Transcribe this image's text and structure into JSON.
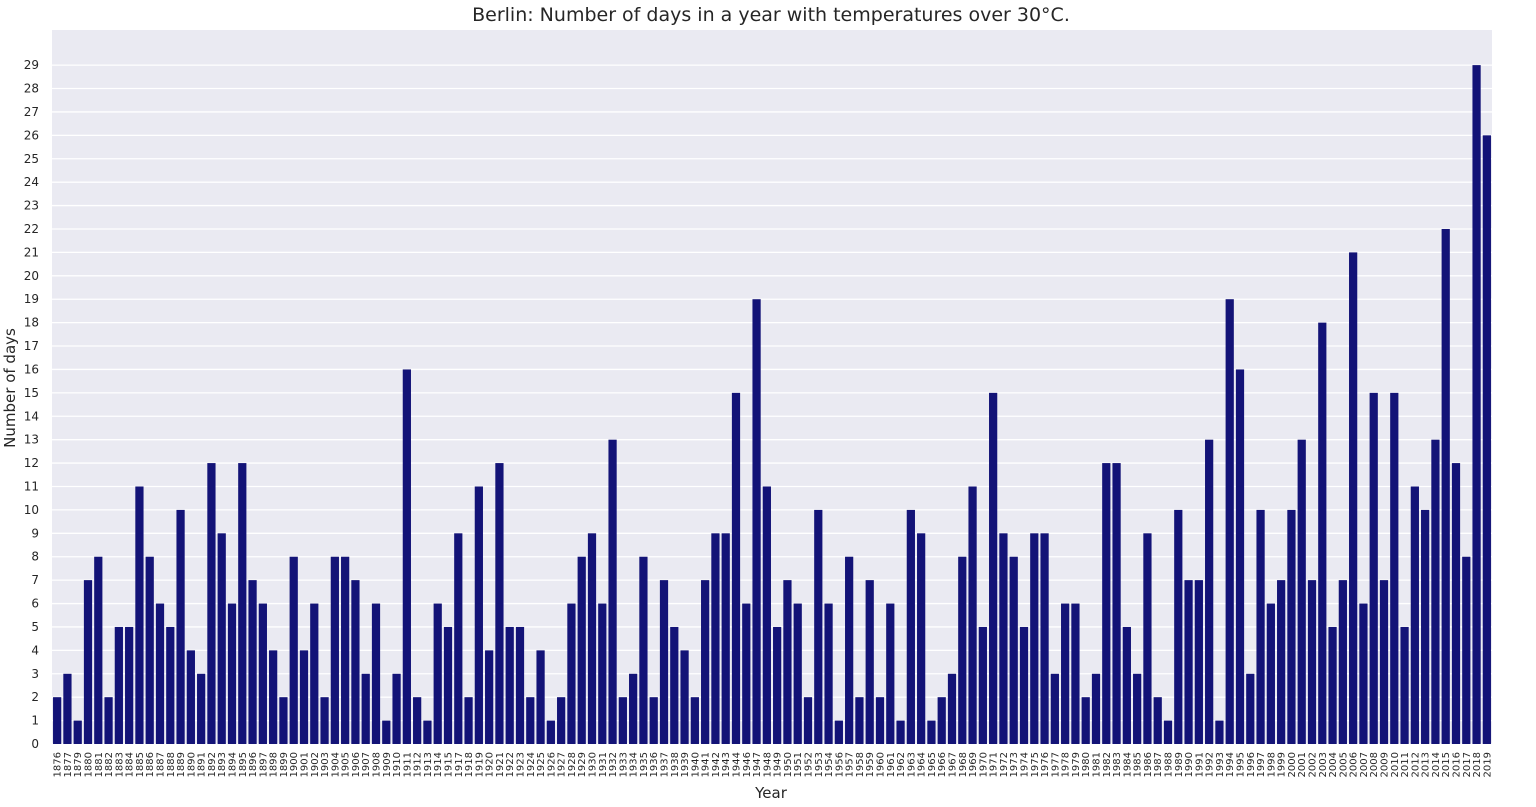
{
  "chart_data": {
    "type": "bar",
    "title": "Berlin: Number of days in a year with temperatures over 30°C.",
    "xlabel": "Year",
    "ylabel": "Number of days",
    "ylim": [
      0,
      30.5
    ],
    "yticks": [
      0,
      1,
      2,
      3,
      4,
      5,
      6,
      7,
      8,
      9,
      10,
      11,
      12,
      13,
      14,
      15,
      16,
      17,
      18,
      19,
      20,
      21,
      22,
      23,
      24,
      25,
      26,
      27,
      28,
      29
    ],
    "grid": true,
    "background_color": "#eaeaf2",
    "grid_color": "#ffffff",
    "bar_color": "#131377",
    "categories": [
      "1876",
      "1877",
      "1879",
      "1880",
      "1881",
      "1882",
      "1883",
      "1884",
      "1885",
      "1886",
      "1887",
      "1888",
      "1889",
      "1890",
      "1891",
      "1892",
      "1893",
      "1894",
      "1895",
      "1896",
      "1897",
      "1898",
      "1899",
      "1900",
      "1901",
      "1902",
      "1903",
      "1904",
      "1905",
      "1906",
      "1907",
      "1908",
      "1909",
      "1910",
      "1911",
      "1912",
      "1913",
      "1914",
      "1915",
      "1917",
      "1918",
      "1919",
      "1920",
      "1921",
      "1922",
      "1923",
      "1924",
      "1925",
      "1926",
      "1927",
      "1928",
      "1929",
      "1930",
      "1931",
      "1932",
      "1933",
      "1934",
      "1935",
      "1936",
      "1937",
      "1938",
      "1939",
      "1940",
      "1941",
      "1942",
      "1943",
      "1944",
      "1946",
      "1947",
      "1948",
      "1949",
      "1950",
      "1951",
      "1952",
      "1953",
      "1954",
      "1956",
      "1957",
      "1958",
      "1959",
      "1960",
      "1961",
      "1962",
      "1963",
      "1964",
      "1965",
      "1966",
      "1967",
      "1968",
      "1969",
      "1970",
      "1971",
      "1972",
      "1973",
      "1974",
      "1975",
      "1976",
      "1977",
      "1978",
      "1979",
      "1980",
      "1981",
      "1982",
      "1983",
      "1984",
      "1985",
      "1986",
      "1987",
      "1988",
      "1989",
      "1990",
      "1991",
      "1992",
      "1993",
      "1994",
      "1995",
      "1996",
      "1997",
      "1998",
      "1999",
      "2000",
      "2001",
      "2002",
      "2003",
      "2004",
      "2005",
      "2006",
      "2007",
      "2008",
      "2009",
      "2010",
      "2011",
      "2012",
      "2013",
      "2014",
      "2015",
      "2016",
      "2017",
      "2018",
      "2019"
    ],
    "values": [
      2,
      3,
      1,
      7,
      8,
      2,
      5,
      5,
      11,
      8,
      6,
      5,
      10,
      4,
      3,
      12,
      9,
      6,
      12,
      7,
      6,
      4,
      2,
      8,
      4,
      6,
      2,
      8,
      8,
      7,
      3,
      6,
      1,
      3,
      16,
      2,
      1,
      6,
      5,
      9,
      2,
      11,
      4,
      12,
      5,
      5,
      2,
      4,
      1,
      2,
      6,
      8,
      9,
      6,
      13,
      2,
      3,
      8,
      2,
      7,
      5,
      4,
      2,
      7,
      9,
      9,
      15,
      6,
      19,
      11,
      5,
      7,
      6,
      2,
      10,
      6,
      1,
      8,
      2,
      7,
      2,
      6,
      1,
      10,
      9,
      1,
      2,
      3,
      8,
      11,
      5,
      15,
      9,
      8,
      5,
      9,
      9,
      3,
      6,
      6,
      2,
      3,
      12,
      12,
      5,
      3,
      9,
      2,
      1,
      10,
      7,
      7,
      13,
      1,
      19,
      16,
      3,
      10,
      6,
      7,
      10,
      13,
      7,
      18,
      5,
      7,
      21,
      6,
      15,
      7,
      15,
      5,
      11,
      10,
      13,
      22,
      12,
      8,
      29,
      26
    ]
  }
}
